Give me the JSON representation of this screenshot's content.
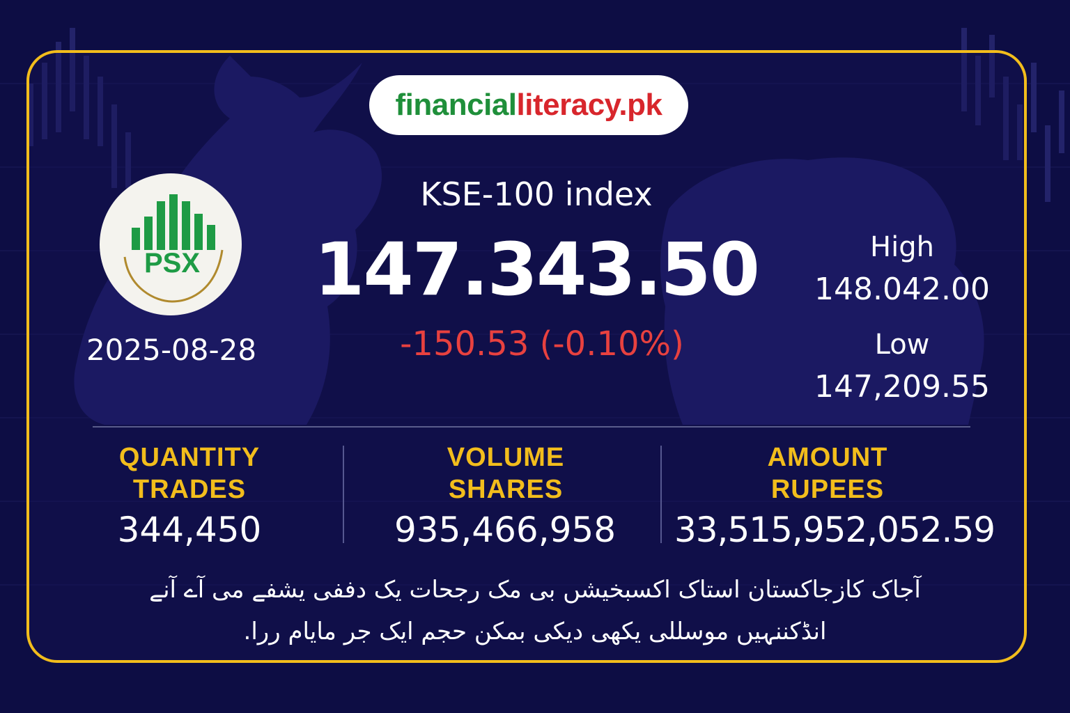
{
  "brand": {
    "part1": "financial",
    "part2": "literacy.pk",
    "color1": "#1f8f3a",
    "color2": "#d8262c"
  },
  "logo": {
    "text": "PSX",
    "icon": "psx-bars-logo",
    "color": "#1e9b45",
    "ring_color": "#b08a2e"
  },
  "date": "2025-08-28",
  "index": {
    "name": "KSE-100 index",
    "value": "147.343.50",
    "change": "-150.53 (-0.10%)",
    "change_color": "#e8413f"
  },
  "high": {
    "label": "High",
    "value": "148.042.00"
  },
  "low": {
    "label": "Low",
    "value": "147,209.55"
  },
  "stats": [
    {
      "label1": "QUANTITY",
      "label2": "TRADES",
      "value": "344,450"
    },
    {
      "label1": "VOLUME",
      "label2": "SHARES",
      "value": "935,466,958"
    },
    {
      "label1": "AMOUNT",
      "label2": "RUPEES",
      "value": "33,515,952,052.59"
    }
  ],
  "urdu_text": {
    "line1": "آجاک کازجاکستان استاک اکسبخیشں بی مک رجحات یک دففی یشفے می آے آنے",
    "line2": "انڈکننہیں موسللی یکھی دیکی بمکن حجم ایک جر مایام ررا."
  },
  "colors": {
    "background": "#0d0d44",
    "border": "#f2bd1c",
    "label": "#f2bd1c"
  }
}
